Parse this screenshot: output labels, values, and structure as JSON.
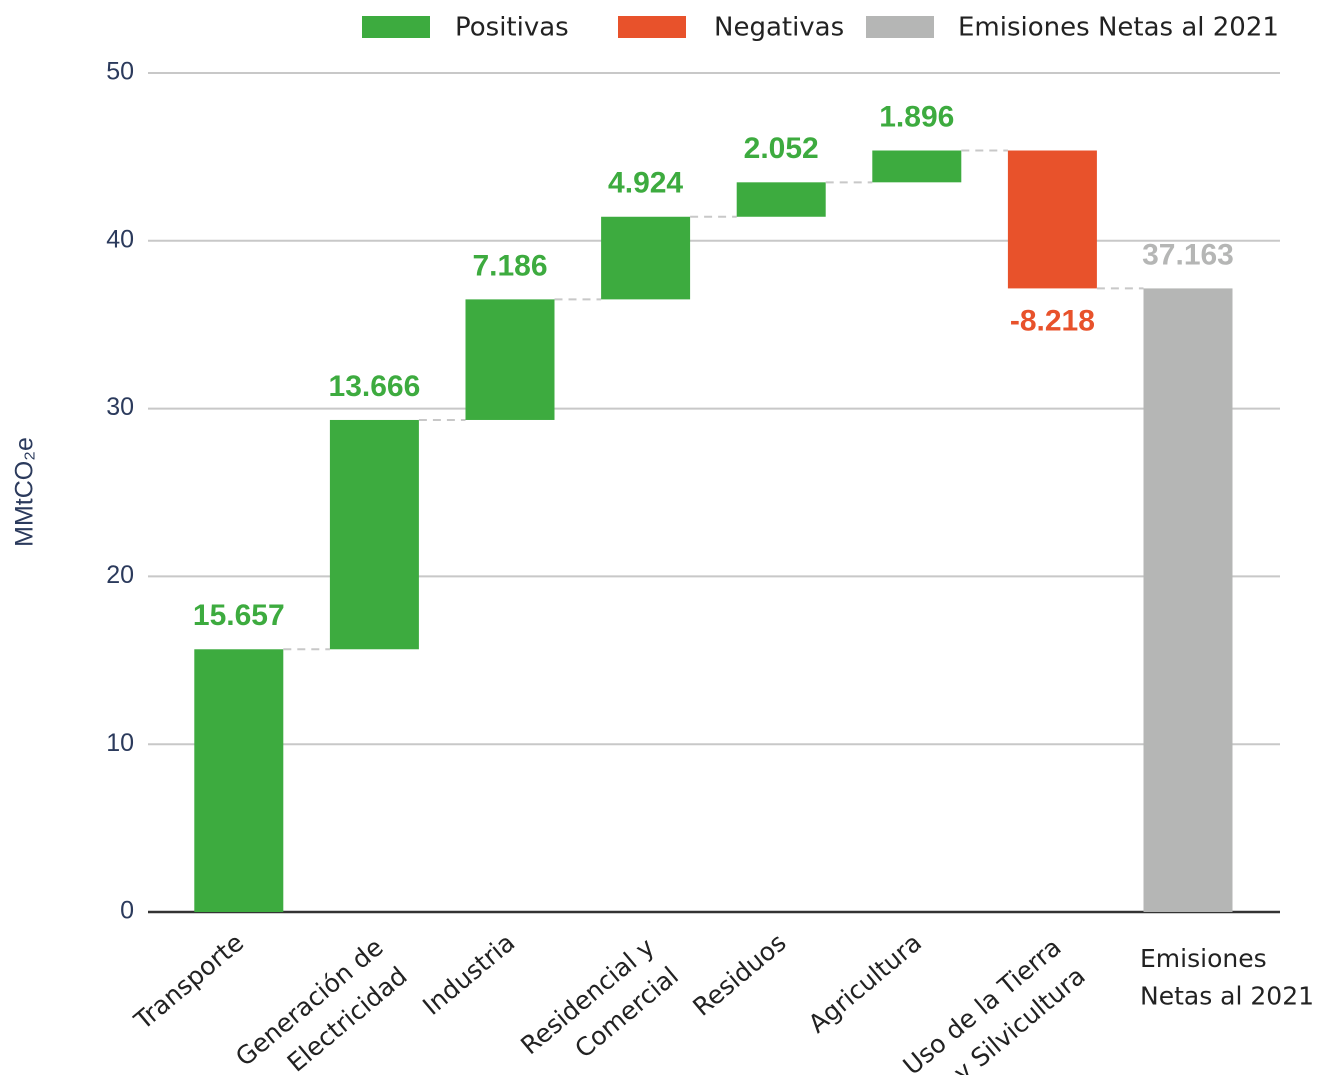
{
  "chart_data": {
    "type": "waterfall",
    "y_label": "MMtCO₂e",
    "categories": [
      "Transporte",
      "Generación de\nElectricidad",
      "Industria",
      "Residencial y\nComercial",
      "Residuos",
      "Agricultura",
      "Uso de la Tierra\ny Silvicultura",
      "Emisiones\nNetas al 2021"
    ],
    "values": [
      15.657,
      13.666,
      7.186,
      4.924,
      2.052,
      1.896,
      -8.218,
      37.163
    ],
    "legend": [
      {
        "name": "Positivas",
        "color": "#3dab3f"
      },
      {
        "name": "Negativas",
        "color": "#e8522b"
      },
      {
        "name": "Emisiones Netas al 2021",
        "color": "#b5b6b5"
      }
    ],
    "ylim": [
      0,
      50
    ],
    "yticks": [
      0,
      10,
      20,
      30,
      40,
      50
    ],
    "grid": true
  }
}
